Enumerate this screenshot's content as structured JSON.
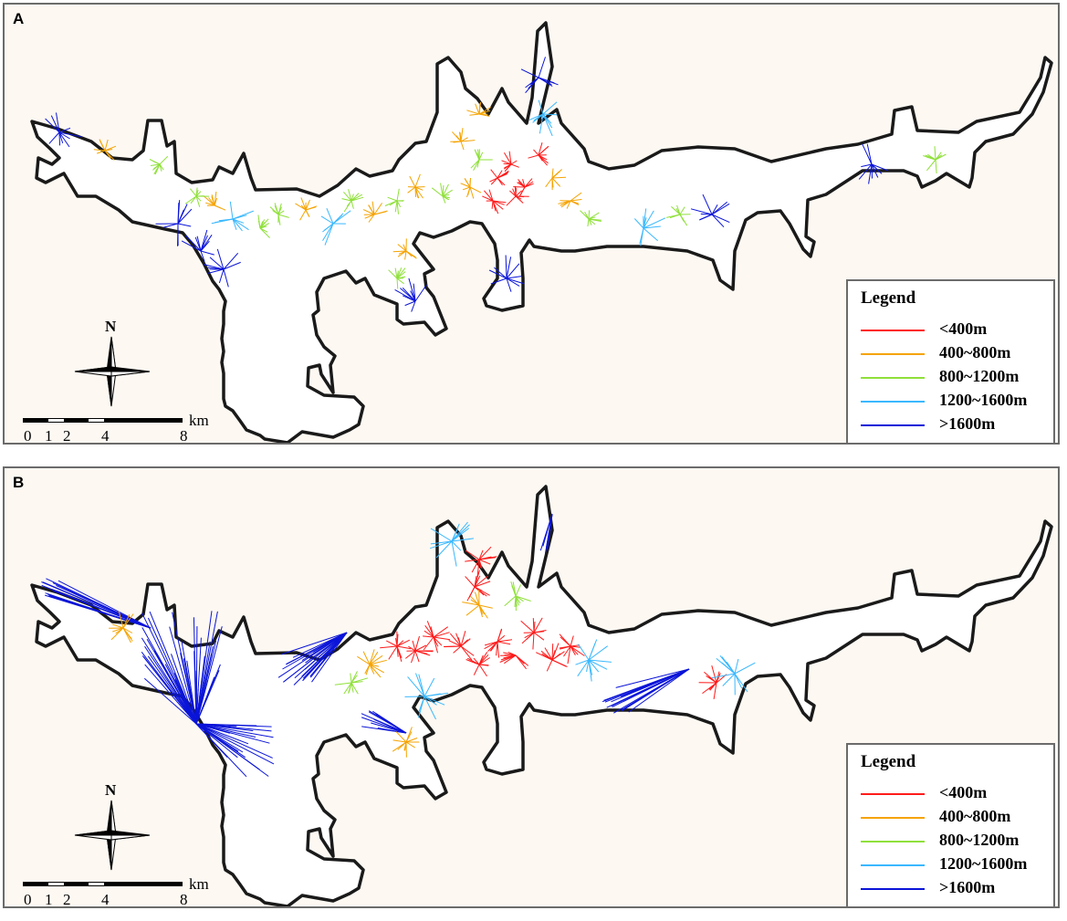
{
  "panels": [
    {
      "id": "A",
      "label": "A"
    },
    {
      "id": "B",
      "label": "B"
    }
  ],
  "legend": {
    "title": "Legend",
    "items": [
      {
        "label": "<400m",
        "color": "#ff1a1a"
      },
      {
        "label": "400~800m",
        "color": "#f5a300"
      },
      {
        "label": "800~1200m",
        "color": "#8fe03a"
      },
      {
        "label": "1200~1600m",
        "color": "#3ab8ff"
      },
      {
        "label": ">1600m",
        "color": "#0a14d8"
      }
    ]
  },
  "compass": {
    "north_label": "N"
  },
  "scale": {
    "ticks": [
      "0",
      "1",
      "2",
      "4",
      "8"
    ],
    "unit": "km"
  },
  "colors": {
    "background": "#fdf8f2",
    "outline": "#1a1a1a",
    "panel_border": "#6b6b6b"
  }
}
